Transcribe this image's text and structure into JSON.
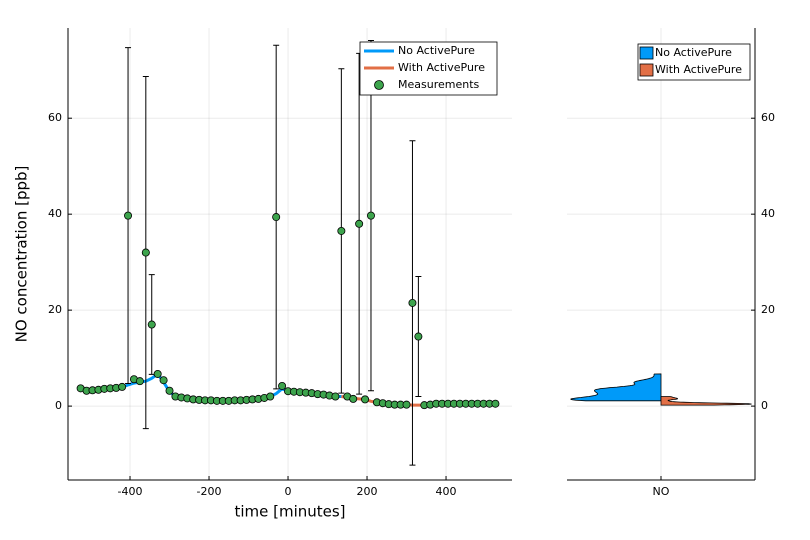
{
  "chart_data": [
    {
      "type": "scatter",
      "xlabel": "time [minutes]",
      "ylabel": "NO concentration [ppb]",
      "x": [
        -525,
        -510,
        -495,
        -480,
        -465,
        -450,
        -435,
        -420,
        -405,
        -390,
        -375,
        -360,
        -345,
        -330,
        -315,
        -300,
        -285,
        -270,
        -255,
        -240,
        -225,
        -210,
        -195,
        -180,
        -165,
        -150,
        -135,
        -120,
        -105,
        -90,
        -75,
        -60,
        -45,
        -30,
        -15,
        0,
        15,
        30,
        45,
        60,
        75,
        90,
        105,
        120,
        135,
        150,
        165,
        180,
        195,
        210,
        225,
        240,
        255,
        270,
        285,
        300,
        315,
        330,
        345,
        360,
        375,
        390,
        405,
        420,
        435,
        450,
        465,
        480,
        495,
        510,
        525
      ],
      "series": [
        {
          "name": "No ActivePure",
          "kind": "line",
          "color": "#009af9",
          "values": [
            3.7,
            3.3,
            3.4,
            3.5,
            3.6,
            3.7,
            3.8,
            4.0,
            4.4,
            4.8,
            5.0,
            5.2,
            5.8,
            6.7,
            5.0,
            3.0,
            2.0,
            1.8,
            1.6,
            1.4,
            1.3,
            1.2,
            1.2,
            1.1,
            1.1,
            1.1,
            1.2,
            1.2,
            1.3,
            1.4,
            1.5,
            1.7,
            2.0,
            2.6,
            3.6,
            3.1,
            3.0,
            2.9,
            2.8,
            2.7,
            2.5,
            2.4,
            2.2,
            2.0,
            2.0,
            null,
            null,
            null,
            null,
            null,
            null,
            null,
            null,
            null,
            null,
            null,
            null,
            null,
            null,
            null,
            null,
            null,
            null,
            null,
            null,
            null,
            null,
            null,
            null,
            null,
            null
          ]
        },
        {
          "name": "With ActivePure",
          "kind": "line",
          "color": "#e26f46",
          "values": [
            null,
            null,
            null,
            null,
            null,
            null,
            null,
            null,
            null,
            null,
            null,
            null,
            null,
            null,
            null,
            null,
            null,
            null,
            null,
            null,
            null,
            null,
            null,
            null,
            null,
            null,
            null,
            null,
            null,
            null,
            null,
            null,
            null,
            null,
            null,
            null,
            null,
            null,
            null,
            null,
            null,
            null,
            null,
            null,
            2.0,
            1.8,
            1.6,
            1.5,
            1.4,
            1.0,
            0.8,
            0.6,
            0.4,
            0.3,
            0.3,
            0.3,
            0.2,
            0.2,
            0.2,
            0.3,
            0.4,
            0.5,
            0.5,
            0.5,
            0.5,
            0.5,
            0.5,
            0.5,
            0.5,
            0.5,
            0.5
          ]
        },
        {
          "name": "Measurements",
          "kind": "points",
          "color": "#3da44d",
          "values": [
            3.7,
            3.2,
            3.3,
            3.4,
            3.6,
            3.7,
            3.8,
            4.0,
            39.7,
            5.6,
            5.2,
            32.0,
            17.0,
            6.7,
            5.4,
            3.2,
            2.0,
            1.8,
            1.6,
            1.4,
            1.3,
            1.2,
            1.2,
            1.1,
            1.1,
            1.1,
            1.2,
            1.2,
            1.3,
            1.4,
            1.5,
            1.7,
            2.0,
            39.4,
            4.2,
            3.1,
            3.0,
            2.9,
            2.8,
            2.7,
            2.5,
            2.4,
            2.2,
            2.0,
            36.5,
            2.0,
            1.5,
            38.0,
            1.4,
            39.7,
            0.8,
            0.6,
            0.4,
            0.3,
            0.3,
            0.3,
            21.5,
            14.5,
            0.2,
            0.3,
            0.5,
            0.5,
            0.5,
            0.5,
            0.5,
            0.5,
            0.5,
            0.5,
            0.5,
            0.5,
            0.5
          ],
          "errors": [
            null,
            null,
            null,
            null,
            null,
            null,
            null,
            null,
            35,
            null,
            null,
            36.7,
            10.4,
            null,
            null,
            null,
            null,
            null,
            null,
            null,
            null,
            null,
            null,
            null,
            null,
            null,
            null,
            null,
            null,
            null,
            null,
            null,
            null,
            35.8,
            null,
            null,
            null,
            null,
            null,
            null,
            null,
            null,
            null,
            null,
            33.8,
            null,
            null,
            35.5,
            null,
            36.5,
            null,
            null,
            null,
            null,
            null,
            null,
            33.8,
            12.5,
            null,
            null,
            null,
            null,
            null,
            null,
            null,
            null,
            null,
            null,
            null,
            null,
            null
          ]
        }
      ],
      "xlim": [
        -557,
        567
      ],
      "ylim": [
        -15.4,
        78.8
      ],
      "xticks": [
        -400,
        -200,
        0,
        200,
        400
      ],
      "yticks": [
        0,
        20,
        40,
        60
      ],
      "grid": true,
      "legend": "top right"
    },
    {
      "type": "violin",
      "categories": [
        "NO"
      ],
      "series": [
        {
          "name": "No ActivePure",
          "color": "#009af9",
          "values": [
            3.7,
            3.3,
            3.4,
            3.5,
            3.6,
            3.7,
            3.8,
            4.0,
            4.4,
            4.8,
            5.0,
            5.2,
            5.8,
            6.7,
            5.0,
            3.0,
            2.0,
            1.8,
            1.6,
            1.4,
            1.3,
            1.2,
            1.2,
            1.1,
            1.1,
            1.1,
            1.2,
            1.2,
            1.3,
            1.4,
            1.5,
            1.7,
            2.0,
            2.6,
            3.6,
            3.1,
            3.0,
            2.9,
            2.8,
            2.7,
            2.5,
            2.4,
            2.2,
            2.0,
            2.0
          ]
        },
        {
          "name": "With ActivePure",
          "color": "#e26f46",
          "values": [
            2.0,
            1.8,
            1.6,
            1.5,
            1.4,
            1.0,
            0.8,
            0.6,
            0.4,
            0.3,
            0.3,
            0.3,
            0.2,
            0.2,
            0.2,
            0.3,
            0.4,
            0.5,
            0.5,
            0.5,
            0.5,
            0.5,
            0.5,
            0.5,
            0.5,
            0.5,
            0.5
          ]
        }
      ],
      "ylim": [
        -15.4,
        78.8
      ],
      "yticks": [
        0,
        20,
        40,
        60
      ],
      "grid": true,
      "legend": "top right"
    }
  ]
}
